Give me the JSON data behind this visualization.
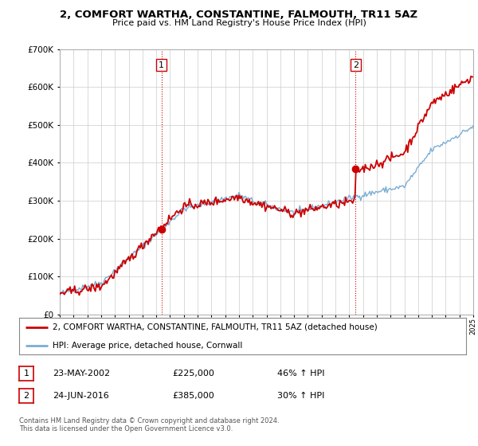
{
  "title": "2, COMFORT WARTHA, CONSTANTINE, FALMOUTH, TR11 5AZ",
  "subtitle": "Price paid vs. HM Land Registry's House Price Index (HPI)",
  "legend_line1": "2, COMFORT WARTHA, CONSTANTINE, FALMOUTH, TR11 5AZ (detached house)",
  "legend_line2": "HPI: Average price, detached house, Cornwall",
  "footer1": "Contains HM Land Registry data © Crown copyright and database right 2024.",
  "footer2": "This data is licensed under the Open Government Licence v3.0.",
  "table_rows": [
    {
      "num": "1",
      "date": "23-MAY-2002",
      "price": "£225,000",
      "change": "46% ↑ HPI"
    },
    {
      "num": "2",
      "date": "24-JUN-2016",
      "price": "£385,000",
      "change": "30% ↑ HPI"
    }
  ],
  "sale1_year": 2002.38,
  "sale1_price": 225000,
  "sale2_year": 2016.47,
  "sale2_price": 385000,
  "red_color": "#cc0000",
  "blue_color": "#7aadd4",
  "vline_color": "#cc0000",
  "grid_color": "#cccccc",
  "bg_color": "#ffffff",
  "xmin": 1995,
  "xmax": 2025,
  "ymin": 0,
  "ymax": 700000
}
